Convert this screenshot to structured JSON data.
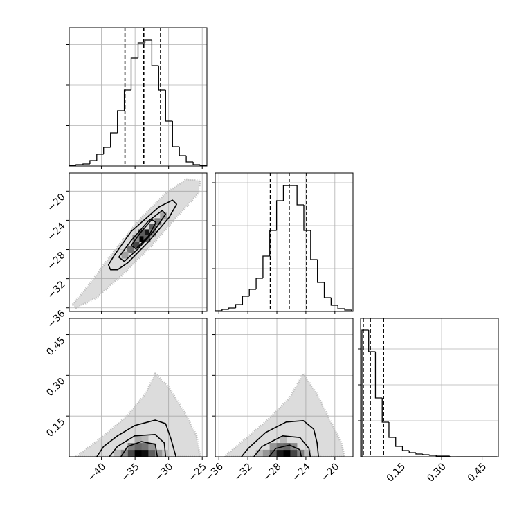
{
  "chart_data": {
    "type": "corner",
    "color": "#000000",
    "grid": true,
    "parameters": [
      {
        "lim": [
          -44.8,
          -24.3
        ],
        "ticks": [
          {
            "value": -40,
            "label": "−40"
          },
          {
            "value": -35,
            "label": "−35"
          },
          {
            "value": -30,
            "label": "−30"
          },
          {
            "value": -25,
            "label": "−25"
          }
        ],
        "quantiles": [
          -36.5,
          -33.7,
          -31.2
        ],
        "histogram": {
          "bins": [
            -44.8,
            -43.78,
            -42.75,
            -41.72,
            -40.7,
            -39.68,
            -38.65,
            -37.62,
            -36.6,
            -35.58,
            -34.55,
            -33.52,
            -32.5,
            -31.48,
            -30.45,
            -29.42,
            -28.4,
            -27.38,
            -26.35,
            -25.32,
            -24.3
          ],
          "counts": [
            17,
            34,
            51,
            137,
            291,
            462,
            821,
            1368,
            1880,
            2667,
            3043,
            3111,
            2479,
            1880,
            1111,
            479,
            256,
            103,
            34,
            17
          ],
          "ylim": [
            0,
            3419
          ],
          "yticks": [
            1000,
            2000,
            3000
          ]
        }
      },
      {
        "lim": [
          -36.5,
          -17.5
        ],
        "ticks": [
          {
            "value": -36,
            "label": "−36"
          },
          {
            "value": -32,
            "label": "−32"
          },
          {
            "value": -28,
            "label": "−28"
          },
          {
            "value": -24,
            "label": "−24"
          },
          {
            "value": -20,
            "label": "−20"
          }
        ],
        "quantiles": [
          -28.9,
          -26.3,
          -23.9
        ],
        "histogram": {
          "bins": [
            -36.5,
            -35.56,
            -34.62,
            -33.68,
            -32.74,
            -31.8,
            -30.86,
            -29.92,
            -28.98,
            -28.04,
            -27.1,
            -26.16,
            -25.22,
            -24.28,
            -23.34,
            -22.4,
            -21.46,
            -20.52,
            -19.58,
            -18.64,
            -17.7
          ],
          "counts": [
            16,
            48,
            81,
            161,
            355,
            516,
            774,
            1290,
            1887,
            2581,
            2935,
            2935,
            2484,
            1887,
            1210,
            677,
            323,
            145,
            65,
            32
          ],
          "ylim": [
            0,
            3226
          ],
          "yticks": [
            1000,
            2000,
            3000
          ]
        }
      },
      {
        "lim": [
          0,
          0.51
        ],
        "ticks": [
          0.15,
          {
            "value": 0.3,
            "label": "0.30"
          },
          0.45
        ],
        "quantiles": [
          0.01,
          0.036,
          0.085
        ],
        "histogram": {
          "bins": [
            0.005,
            0.03,
            0.055,
            0.08,
            0.105,
            0.13,
            0.155,
            0.18,
            0.205,
            0.23,
            0.255,
            0.28,
            0.305,
            0.33,
            0.355,
            0.38,
            0.405,
            0.43,
            0.455,
            0.48,
            0.505
          ],
          "counts": [
            3519,
            2923,
            1635,
            962,
            538,
            288,
            173,
            115,
            77,
            58,
            38,
            19,
            19,
            0,
            0,
            0,
            0,
            0,
            0,
            0
          ],
          "ylim": [
            0,
            3846
          ],
          "yticks": [
            1000,
            2000,
            3000
          ]
        }
      }
    ],
    "pairs": [
      {
        "hull": {
          "x": [
            -44.29,
            -41.72,
            -38.65,
            -34.55,
            -30.45,
            -27.37,
            -25.32,
            -25.53,
            -28.4,
            -32.5,
            -36.6,
            -40.7,
            -43.78
          ],
          "y": [
            -35.55,
            -32.68,
            -28.86,
            -24.09,
            -20.27,
            -18.36,
            -18.55,
            -20.27,
            -23.13,
            -27.43,
            -31.25,
            -34.59,
            -36.03
          ]
        },
        "density": {
          "x": [
            -34.04,
            -33.22,
            -34.86,
            -32.4,
            -35.68,
            -31.58,
            -34.04,
            -33.22,
            -34.86,
            -32.4,
            -36.5,
            -30.76
          ],
          "y": [
            -26.47,
            -25.71,
            -27.24,
            -24.95,
            -28.0,
            -24.18,
            -25.71,
            -26.47,
            -26.47,
            -25.71,
            -28.77,
            -23.42
          ],
          "values": [
            1.0,
            0.9,
            0.7,
            0.6,
            0.5,
            0.45,
            0.6,
            0.6,
            0.4,
            0.4,
            0.3,
            0.3
          ]
        },
        "contours": [
          {
            "x": [
              -38.96,
              -38.14,
              -35.57,
              -31.47,
              -29.42,
              -28.81,
              -29.94,
              -33.01,
              -36.09,
              -37.62,
              -38.65
            ],
            "y": [
              -30.1,
              -28.86,
              -25.52,
              -22.18,
              -21.22,
              -21.79,
              -23.61,
              -26.95,
              -29.82,
              -30.77,
              -30.77
            ]
          },
          {
            "x": [
              -37.42,
              -35.57,
              -33.01,
              -30.96,
              -30.45,
              -31.99,
              -34.55,
              -36.6
            ],
            "y": [
              -29.05,
              -26.76,
              -24.09,
              -22.65,
              -23.13,
              -25.23,
              -27.91,
              -29.63
            ]
          },
          {
            "x": [
              -35.57,
              -34.04,
              -32.5,
              -31.89,
              -33.01,
              -34.86
            ],
            "y": [
              -27.43,
              -25.52,
              -23.89,
              -24.28,
              -26.19,
              -27.91
            ]
          }
        ]
      },
      {
        "hull": {
          "x": [
            -43.78,
            -39.67,
            -36.09,
            -33.52,
            -32.0,
            -29.94,
            -27.37,
            -25.84,
            -25.32
          ],
          "y": [
            0,
            0.077,
            0.153,
            0.23,
            0.306,
            0.255,
            0.153,
            0.077,
            0
          ]
        },
        "density": {
          "x": [
            -34.55,
            -33.52,
            -35.57,
            -32.5,
            -36.6,
            -31.47,
            -34.55,
            -33.52,
            -35.57,
            -32.5,
            -34.55,
            -33.52,
            -37.62,
            -30.45
          ],
          "y": [
            0.013,
            0.013,
            0.013,
            0.013,
            0.013,
            0.013,
            0.038,
            0.038,
            0.038,
            0.038,
            0.064,
            0.064,
            0.013,
            0.013
          ],
          "values": [
            1.0,
            0.95,
            0.7,
            0.6,
            0.4,
            0.35,
            0.55,
            0.5,
            0.45,
            0.35,
            0.25,
            0.2,
            0.2,
            0.15
          ]
        },
        "contours": [
          {
            "x": [
              -40.7,
              -39.67,
              -37.62,
              -35.06,
              -32.0,
              -30.45,
              -29.63,
              -28.91
            ],
            "y": [
              0,
              0.038,
              0.077,
              0.115,
              0.135,
              0.122,
              0.064,
              0
            ]
          },
          {
            "x": [
              -38.85,
              -37.62,
              -35.06,
              -32.0,
              -30.65,
              -30.45
            ],
            "y": [
              0,
              0.038,
              0.077,
              0.082,
              0.051,
              0
            ]
          },
          {
            "x": [
              -37.11,
              -36.09,
              -34.04,
              -32.0,
              -31.68
            ],
            "y": [
              0,
              0.038,
              0.056,
              0.046,
              0
            ]
          }
        ]
      },
      {
        "hull": {
          "x": [
            -35.27,
            -32.42,
            -29.09,
            -26.24,
            -24.34,
            -22.45,
            -20.55,
            -19.12,
            -18.65
          ],
          "y": [
            0,
            0.064,
            0.14,
            0.217,
            0.306,
            0.23,
            0.128,
            0.051,
            0
          ]
        },
        "density": {
          "x": [
            -26.62,
            -27.57,
            -25.67,
            -28.52,
            -24.72,
            -29.47,
            -26.62,
            -27.57,
            -25.67,
            -28.52,
            -27.1,
            -30.42,
            -23.77
          ],
          "y": [
            0.013,
            0.013,
            0.013,
            0.013,
            0.013,
            0.013,
            0.038,
            0.038,
            0.038,
            0.038,
            0.064,
            0.013,
            0.013
          ],
          "values": [
            1.0,
            0.9,
            0.7,
            0.6,
            0.45,
            0.35,
            0.55,
            0.5,
            0.4,
            0.35,
            0.2,
            0.2,
            0.2
          ]
        },
        "contours": [
          {
            "x": [
              -32.89,
              -31.94,
              -29.57,
              -26.72,
              -24.34,
              -22.92,
              -22.45,
              -22.26
            ],
            "y": [
              0,
              0.031,
              0.089,
              0.128,
              0.133,
              0.102,
              0.051,
              0
            ]
          },
          {
            "x": [
              -31.18,
              -30.04,
              -27.19,
              -24.82,
              -23.58,
              -23.39
            ],
            "y": [
              0,
              0.038,
              0.077,
              0.071,
              0.031,
              0
            ]
          },
          {
            "x": [
              -29.09,
              -28.14,
              -26.24,
              -24.82,
              -24.63
            ],
            "y": [
              0,
              0.031,
              0.043,
              0.026,
              0
            ]
          }
        ]
      }
    ]
  }
}
